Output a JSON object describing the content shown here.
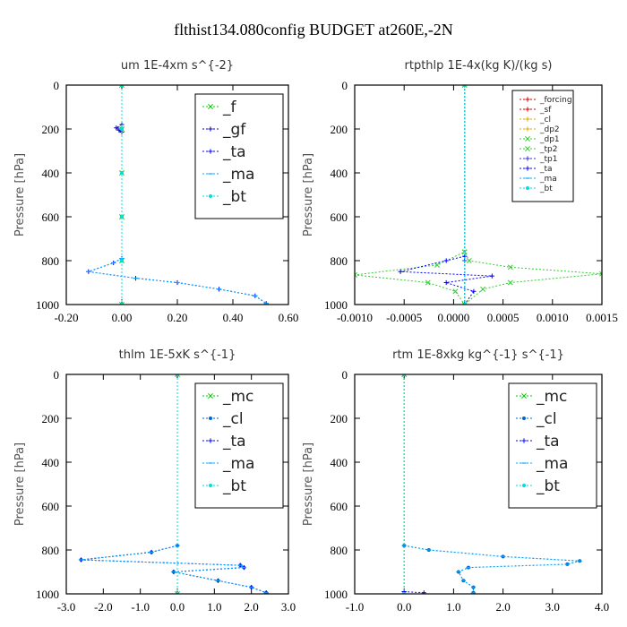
{
  "figure": {
    "title": "flthist134.080config  BUDGET at260E,-2N"
  },
  "chart_data": [
    {
      "type": "line",
      "title": "um   1E-4xm s^{-2}",
      "ylabel": "Pressure [hPa]",
      "xlim": [
        -0.2,
        0.6
      ],
      "ylim": [
        1000,
        0
      ],
      "xticks": [
        "-0.20",
        "0.00",
        "0.20",
        "0.40",
        "0.60"
      ],
      "yticks": [
        "0",
        "200",
        "400",
        "600",
        "800",
        "1000"
      ],
      "legend": {
        "position": "top-right",
        "size": "large"
      },
      "series": [
        {
          "name": "_f",
          "color": "#00cc00",
          "marker": "x",
          "points": [
            [
              0,
              0
            ],
            [
              0,
              200
            ],
            [
              0,
              400
            ],
            [
              0,
              600
            ],
            [
              0,
              800
            ],
            [
              0,
              1000
            ]
          ]
        },
        {
          "name": "_gf",
          "color": "#0000cc",
          "marker": "plus",
          "points": [
            [
              0,
              180
            ],
            [
              -0.02,
              195
            ],
            [
              -0.01,
              205
            ],
            [
              0,
              215
            ]
          ]
        },
        {
          "name": "_ta",
          "color": "#0000ff",
          "marker": "plus",
          "points": [
            [
              0,
              790
            ],
            [
              -0.03,
              810
            ],
            [
              -0.12,
              850
            ],
            [
              0.05,
              880
            ],
            [
              0.2,
              900
            ],
            [
              0.35,
              930
            ],
            [
              0.48,
              960
            ],
            [
              0.52,
              995
            ]
          ]
        },
        {
          "name": "_ma",
          "color": "#00aaff",
          "marker": "dash",
          "points": [
            [
              0,
              790
            ],
            [
              -0.03,
              810
            ],
            [
              -0.12,
              850
            ],
            [
              0.05,
              880
            ],
            [
              0.2,
              900
            ],
            [
              0.35,
              930
            ],
            [
              0.48,
              960
            ],
            [
              0.52,
              995
            ]
          ]
        },
        {
          "name": "_bt",
          "color": "#00dddd",
          "marker": "star",
          "points": [
            [
              0,
              0
            ],
            [
              0,
              200
            ],
            [
              0,
              400
            ],
            [
              0,
              600
            ],
            [
              0,
              800
            ],
            [
              0,
              1000
            ]
          ]
        }
      ]
    },
    {
      "type": "line",
      "title": "rtpthlp   1E-4x(kg K)/(kg s)",
      "ylabel": "Pressure [hPa]",
      "xlim": [
        -0.0012,
        0.0015
      ],
      "ylim": [
        1000,
        0
      ],
      "xticks": [
        "-0.0010",
        "-0.0005",
        "0.0000",
        "0.0005",
        "0.0010",
        "0.0015"
      ],
      "yticks": [
        "0",
        "200",
        "400",
        "600",
        "800",
        "1000"
      ],
      "legend": {
        "position": "top-right",
        "size": "small"
      },
      "series": [
        {
          "name": "_forcing",
          "color": "#cc0000",
          "marker": "plus",
          "points": [
            [
              0,
              0
            ],
            [
              0,
              1000
            ]
          ]
        },
        {
          "name": "_sf",
          "color": "#cc0000",
          "marker": "plus",
          "points": [
            [
              0,
              0
            ],
            [
              0,
              1000
            ]
          ]
        },
        {
          "name": "_cl",
          "color": "#ddaa00",
          "marker": "plus",
          "points": [
            [
              0,
              0
            ],
            [
              0,
              1000
            ]
          ]
        },
        {
          "name": "_dp2",
          "color": "#ddaa00",
          "marker": "plus",
          "points": [
            [
              0,
              0
            ],
            [
              0,
              1000
            ]
          ]
        },
        {
          "name": "_dp1",
          "color": "#33cc33",
          "marker": "x",
          "points": [
            [
              0,
              0
            ],
            [
              0,
              760
            ],
            [
              5e-05,
              800
            ],
            [
              0.0005,
              830
            ],
            [
              0.0015,
              860
            ],
            [
              0.0005,
              900
            ],
            [
              0.0002,
              930
            ],
            [
              0,
              1000
            ]
          ]
        },
        {
          "name": "_tp2",
          "color": "#33cc33",
          "marker": "x",
          "points": [
            [
              0,
              0
            ],
            [
              0,
              760
            ],
            [
              -0.0003,
              820
            ],
            [
              -0.0012,
              865
            ],
            [
              -0.0004,
              900
            ],
            [
              -0.0001,
              940
            ],
            [
              0,
              1000
            ]
          ]
        },
        {
          "name": "_tp1",
          "color": "#3333cc",
          "marker": "plus",
          "points": [
            [
              0,
              800
            ],
            [
              0,
              1000
            ]
          ]
        },
        {
          "name": "_ta",
          "color": "#0000ff",
          "marker": "plus",
          "points": [
            [
              0,
              780
            ],
            [
              -0.0002,
              800
            ],
            [
              -0.0007,
              850
            ],
            [
              0.0003,
              870
            ],
            [
              -0.0002,
              900
            ],
            [
              0.0001,
              940
            ],
            [
              0,
              1000
            ]
          ]
        },
        {
          "name": "_ma",
          "color": "#00aaff",
          "marker": "dash",
          "points": [
            [
              0,
              0
            ],
            [
              0,
              1000
            ]
          ]
        },
        {
          "name": "_bt",
          "color": "#00dddd",
          "marker": "star",
          "points": [
            [
              0,
              0
            ],
            [
              0,
              1000
            ]
          ]
        }
      ]
    },
    {
      "type": "line",
      "title": "thlm   1E-5xK s^{-1}",
      "ylabel": "Pressure [hPa]",
      "xlim": [
        -3.0,
        3.0
      ],
      "ylim": [
        1000,
        0
      ],
      "xticks": [
        "-3.0",
        "-2.0",
        "-1.0",
        "0.0",
        "1.0",
        "2.0",
        "3.0"
      ],
      "yticks": [
        "0",
        "200",
        "400",
        "600",
        "800",
        "1000"
      ],
      "legend": {
        "position": "top-right",
        "size": "large"
      },
      "series": [
        {
          "name": "_mc",
          "color": "#00cc00",
          "marker": "x",
          "points": [
            [
              0,
              0
            ],
            [
              0,
              1000
            ]
          ]
        },
        {
          "name": "_cl",
          "color": "#0066cc",
          "marker": "star",
          "points": [
            [
              0,
              780
            ],
            [
              -0.7,
              810
            ],
            [
              -2.6,
              845
            ],
            [
              1.7,
              870
            ],
            [
              1.8,
              880
            ],
            [
              -0.1,
              900
            ],
            [
              1.1,
              940
            ],
            [
              2.0,
              970
            ],
            [
              2.4,
              995
            ]
          ]
        },
        {
          "name": "_ta",
          "color": "#0000ff",
          "marker": "plus",
          "points": [
            [
              0,
              780
            ],
            [
              -0.7,
              810
            ],
            [
              -2.6,
              845
            ],
            [
              1.7,
              870
            ],
            [
              1.8,
              880
            ],
            [
              -0.1,
              900
            ],
            [
              1.1,
              940
            ],
            [
              2.0,
              970
            ],
            [
              2.4,
              995
            ]
          ]
        },
        {
          "name": "_ma",
          "color": "#00aaff",
          "marker": "dash",
          "points": [
            [
              0,
              780
            ],
            [
              -0.7,
              810
            ],
            [
              -2.6,
              845
            ],
            [
              1.7,
              870
            ],
            [
              1.8,
              880
            ],
            [
              -0.1,
              900
            ],
            [
              1.1,
              940
            ],
            [
              2.0,
              970
            ],
            [
              2.4,
              995
            ]
          ]
        },
        {
          "name": "_bt",
          "color": "#00dddd",
          "marker": "star",
          "points": [
            [
              0,
              0
            ],
            [
              0,
              1000
            ]
          ]
        }
      ]
    },
    {
      "type": "line",
      "title": "rtm   1E-8xkg kg^{-1} s^{-1}",
      "ylabel": "Pressure [hPa]",
      "xlim": [
        -1.0,
        4.0
      ],
      "ylim": [
        1000,
        0
      ],
      "xticks": [
        "-1.0",
        "0.0",
        "1.0",
        "2.0",
        "3.0",
        "4.0"
      ],
      "yticks": [
        "0",
        "200",
        "400",
        "600",
        "800",
        "1000"
      ],
      "legend": {
        "position": "top-right",
        "size": "large"
      },
      "series": [
        {
          "name": "_mc",
          "color": "#00cc00",
          "marker": "x",
          "points": [
            [
              0,
              0
            ],
            [
              0,
              1000
            ]
          ]
        },
        {
          "name": "_cl",
          "color": "#0066cc",
          "marker": "star",
          "points": [
            [
              0,
              780
            ],
            [
              0.5,
              800
            ],
            [
              2.0,
              830
            ],
            [
              3.55,
              850
            ],
            [
              3.3,
              865
            ],
            [
              1.3,
              880
            ],
            [
              1.1,
              900
            ],
            [
              1.2,
              940
            ],
            [
              1.4,
              970
            ],
            [
              1.4,
              995
            ]
          ]
        },
        {
          "name": "_ta",
          "color": "#0000ff",
          "marker": "plus",
          "points": [
            [
              0,
              990
            ],
            [
              0.4,
              995
            ]
          ]
        },
        {
          "name": "_ma",
          "color": "#00aaff",
          "marker": "dash",
          "points": [
            [
              0,
              780
            ],
            [
              0.5,
              800
            ],
            [
              2.0,
              830
            ],
            [
              3.55,
              850
            ],
            [
              3.3,
              865
            ],
            [
              1.3,
              880
            ],
            [
              1.1,
              900
            ],
            [
              1.2,
              940
            ],
            [
              1.4,
              970
            ],
            [
              1.4,
              995
            ]
          ]
        },
        {
          "name": "_bt",
          "color": "#00dddd",
          "marker": "star",
          "points": [
            [
              0,
              0
            ],
            [
              0,
              1000
            ]
          ]
        }
      ]
    }
  ]
}
